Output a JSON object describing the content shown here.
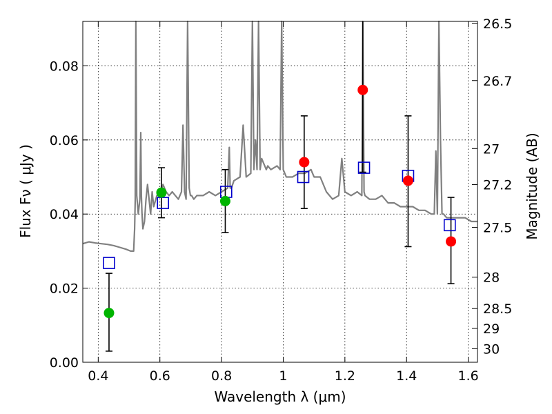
{
  "chart_data": {
    "type": "scatter",
    "xlabel": "Wavelength  λ (μm)",
    "ylabel": "Flux  Fν  ( μJy )",
    "ylabel_right": "Magnitude (AB)",
    "xlim": [
      0.35,
      1.63
    ],
    "ylim": [
      0.0,
      0.092
    ],
    "grid": true,
    "x_ticks": [
      0.4,
      0.6,
      0.8,
      1.0,
      1.2,
      1.4,
      1.6
    ],
    "x_tick_labels": [
      "0.4",
      "0.6",
      "0.8",
      "1",
      "1.2",
      "1.4",
      "1.6"
    ],
    "y_ticks": [
      0.0,
      0.02,
      0.04,
      0.06,
      0.08
    ],
    "y_tick_labels": [
      "0.00",
      "0.02",
      "0.04",
      "0.06",
      "0.08"
    ],
    "right_ticks": [
      {
        "label": "26.5",
        "flux": 0.09141
      },
      {
        "label": "26.7",
        "flux": 0.07603
      },
      {
        "label": "27",
        "flux": 0.05768
      },
      {
        "label": "27.2",
        "flux": 0.04797
      },
      {
        "label": "27.5",
        "flux": 0.03639
      },
      {
        "label": "28",
        "flux": 0.02296
      },
      {
        "label": "28.5",
        "flux": 0.01449
      },
      {
        "label": "29",
        "flux": 0.00914
      },
      {
        "label": "30",
        "flux": 0.00364
      }
    ],
    "series": [
      {
        "name": "model spectrum",
        "style": "line",
        "color": "#808080",
        "x": [
          0.35,
          0.37,
          0.39,
          0.41,
          0.43,
          0.45,
          0.47,
          0.49,
          0.505,
          0.515,
          0.518,
          0.52,
          0.522,
          0.525,
          0.53,
          0.535,
          0.538,
          0.54,
          0.542,
          0.545,
          0.55,
          0.555,
          0.56,
          0.57,
          0.575,
          0.58,
          0.59,
          0.6,
          0.61,
          0.62,
          0.63,
          0.64,
          0.65,
          0.66,
          0.67,
          0.675,
          0.68,
          0.685,
          0.69,
          0.695,
          0.697,
          0.699,
          0.703,
          0.71,
          0.72,
          0.74,
          0.76,
          0.78,
          0.8,
          0.82,
          0.825,
          0.828,
          0.832,
          0.84,
          0.86,
          0.87,
          0.88,
          0.895,
          0.9,
          0.905,
          0.91,
          0.915,
          0.92,
          0.925,
          0.93,
          0.935,
          0.94,
          0.945,
          0.95,
          0.96,
          0.98,
          0.99,
          0.995,
          1.0,
          1.005,
          1.01,
          1.03,
          1.05,
          1.07,
          1.09,
          1.1,
          1.12,
          1.14,
          1.16,
          1.18,
          1.19,
          1.2,
          1.22,
          1.24,
          1.255,
          1.258,
          1.262,
          1.265,
          1.28,
          1.3,
          1.32,
          1.34,
          1.36,
          1.38,
          1.4,
          1.42,
          1.44,
          1.46,
          1.48,
          1.49,
          1.495,
          1.5,
          1.505,
          1.51,
          1.515,
          1.52,
          1.53,
          1.55,
          1.57,
          1.59,
          1.61,
          1.63
        ],
        "y": [
          0.032,
          0.0325,
          0.0322,
          0.032,
          0.0318,
          0.0315,
          0.031,
          0.0305,
          0.03,
          0.03,
          0.036,
          0.044,
          0.092,
          0.045,
          0.04,
          0.044,
          0.062,
          0.045,
          0.04,
          0.036,
          0.038,
          0.044,
          0.048,
          0.04,
          0.046,
          0.042,
          0.045,
          0.045,
          0.048,
          0.046,
          0.045,
          0.046,
          0.045,
          0.044,
          0.046,
          0.064,
          0.046,
          0.044,
          0.092,
          0.047,
          0.046,
          0.045,
          0.045,
          0.044,
          0.045,
          0.045,
          0.046,
          0.045,
          0.046,
          0.047,
          0.058,
          0.047,
          0.047,
          0.049,
          0.05,
          0.064,
          0.05,
          0.051,
          0.092,
          0.052,
          0.06,
          0.052,
          0.092,
          0.052,
          0.055,
          0.054,
          0.053,
          0.052,
          0.053,
          0.052,
          0.053,
          0.052,
          0.092,
          0.052,
          0.051,
          0.05,
          0.05,
          0.051,
          0.051,
          0.052,
          0.05,
          0.05,
          0.046,
          0.044,
          0.045,
          0.055,
          0.046,
          0.045,
          0.046,
          0.045,
          0.092,
          0.046,
          0.045,
          0.044,
          0.044,
          0.045,
          0.043,
          0.043,
          0.042,
          0.042,
          0.042,
          0.041,
          0.041,
          0.04,
          0.04,
          0.057,
          0.04,
          0.092,
          0.06,
          0.04,
          0.04,
          0.039,
          0.039,
          0.039,
          0.039,
          0.038,
          0.038
        ]
      },
      {
        "name": "green detections",
        "style": "marker-circle",
        "color": "#00b400",
        "x": [
          0.435,
          0.605,
          0.812
        ],
        "y": [
          0.0133,
          0.0458,
          0.0435
        ],
        "err_low": [
          0.003,
          0.039,
          0.035
        ],
        "err_high": [
          0.024,
          0.0525,
          0.052
        ]
      },
      {
        "name": "red detections",
        "style": "marker-circle",
        "color": "#ff0000",
        "x": [
          1.068,
          1.258,
          1.405,
          1.544
        ],
        "y": [
          0.054,
          0.0735,
          0.049,
          0.0326
        ],
        "err_low": [
          0.0415,
          0.0513,
          0.0312,
          0.0212
        ],
        "err_high": [
          0.0665,
          0.092,
          0.0665,
          0.0445
        ]
      },
      {
        "name": "model photometry",
        "style": "marker-square-open",
        "color": "#0000cc",
        "x": [
          0.435,
          0.61,
          0.815,
          1.065,
          1.262,
          1.405,
          1.54
        ],
        "y": [
          0.0268,
          0.043,
          0.046,
          0.05,
          0.0525,
          0.0503,
          0.037
        ]
      }
    ]
  }
}
